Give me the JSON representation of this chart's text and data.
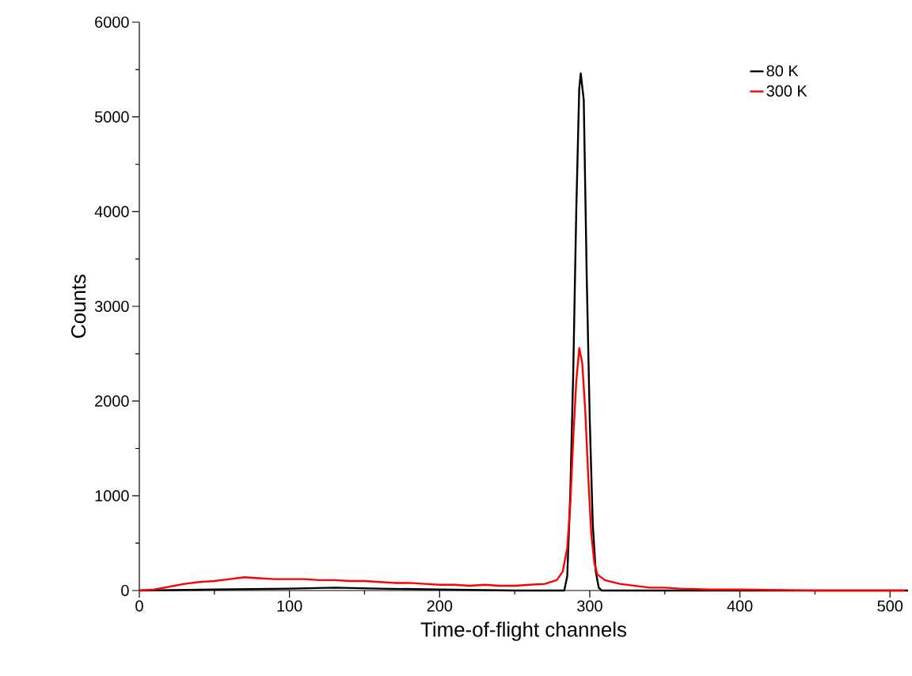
{
  "chart_data": {
    "type": "line",
    "xlabel": "Time-of-flight channels",
    "ylabel": "Counts",
    "xlim": [
      0,
      512
    ],
    "ylim": [
      0,
      6000
    ],
    "xticks": [
      0,
      100,
      200,
      300,
      400,
      500
    ],
    "yticks": [
      0,
      1000,
      2000,
      3000,
      4000,
      5000,
      6000
    ],
    "grid": false,
    "legend": "top right",
    "marker": "none",
    "line_style": "solid",
    "series": [
      {
        "name": "80 K",
        "color": "#000000",
        "x": [
          0,
          50,
          100,
          130,
          160,
          200,
          250,
          283,
          285,
          287,
          289,
          291,
          293,
          294,
          296,
          298,
          300,
          302,
          304,
          306,
          308,
          350,
          400,
          450,
          512
        ],
        "values": [
          0,
          10,
          20,
          30,
          20,
          10,
          0,
          0,
          150,
          1000,
          2300,
          4000,
          5300,
          5460,
          5180,
          3300,
          1800,
          700,
          200,
          30,
          0,
          0,
          0,
          0,
          0
        ]
      },
      {
        "name": "300 K",
        "color": "#ff0000",
        "x": [
          0,
          10,
          20,
          30,
          40,
          50,
          60,
          70,
          80,
          90,
          100,
          110,
          120,
          130,
          140,
          150,
          160,
          170,
          180,
          190,
          200,
          210,
          220,
          230,
          240,
          250,
          260,
          270,
          278,
          282,
          285,
          287,
          289,
          291,
          293,
          294,
          295,
          297,
          299,
          301,
          303,
          305,
          310,
          320,
          330,
          340,
          350,
          360,
          380,
          400,
          450,
          510
        ],
        "values": [
          0,
          10,
          40,
          70,
          90,
          100,
          120,
          140,
          130,
          120,
          120,
          120,
          110,
          110,
          100,
          100,
          90,
          80,
          80,
          70,
          60,
          60,
          50,
          60,
          50,
          50,
          60,
          70,
          110,
          200,
          450,
          900,
          1600,
          2200,
          2560,
          2480,
          2400,
          1900,
          1200,
          600,
          300,
          170,
          110,
          70,
          50,
          30,
          30,
          20,
          10,
          10,
          0,
          0
        ]
      }
    ]
  }
}
